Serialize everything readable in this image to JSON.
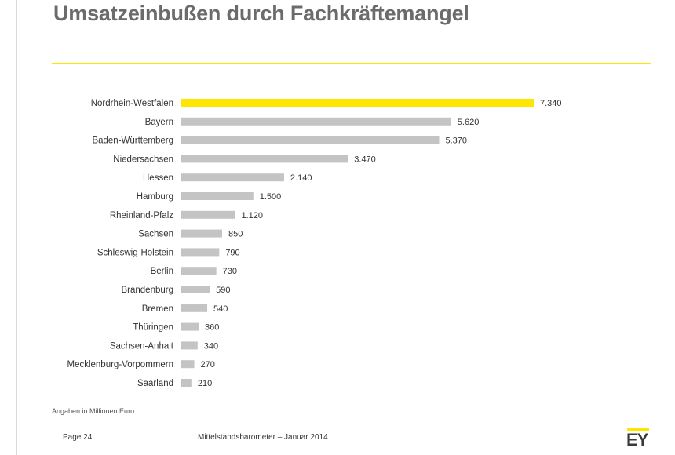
{
  "page": {
    "title": "Umsatzeinbußen durch Fachkräftemangel",
    "note": "Angaben in Millionen Euro",
    "footer_page": "Page 24",
    "footer_source": "Mittelstandsbarometer – Januar 2014",
    "logo_text": "EY"
  },
  "colors": {
    "highlight": "#ffe600",
    "bar": "#c4c4c4",
    "label": "#333333",
    "title": "#6b6b6b"
  },
  "chart_data": {
    "type": "bar",
    "orientation": "horizontal",
    "title": "Umsatzeinbußen durch Fachkräftemangel",
    "xlabel": "",
    "ylabel": "",
    "unit": "Angaben in Millionen Euro",
    "highlight_category": "Nordrhein-Westfalen",
    "xlim": [
      0,
      7340
    ],
    "grid": false,
    "categories": [
      "Nordrhein-Westfalen",
      "Bayern",
      "Baden-Württemberg",
      "Niedersachsen",
      "Hessen",
      "Hamburg",
      "Rheinland-Pfalz",
      "Sachsen",
      "Schleswig-Holstein",
      "Berlin",
      "Brandenburg",
      "Bremen",
      "Thüringen",
      "Sachsen-Anhalt",
      "Mecklenburg-Vorpommern",
      "Saarland"
    ],
    "values": [
      7340,
      5620,
      5370,
      3470,
      2140,
      1500,
      1120,
      850,
      790,
      730,
      590,
      540,
      360,
      340,
      270,
      210
    ],
    "value_labels": [
      "7.340",
      "5.620",
      "5.370",
      "3.470",
      "2.140",
      "1.500",
      "1.120",
      "850",
      "790",
      "730",
      "590",
      "540",
      "360",
      "340",
      "270",
      "210"
    ]
  }
}
